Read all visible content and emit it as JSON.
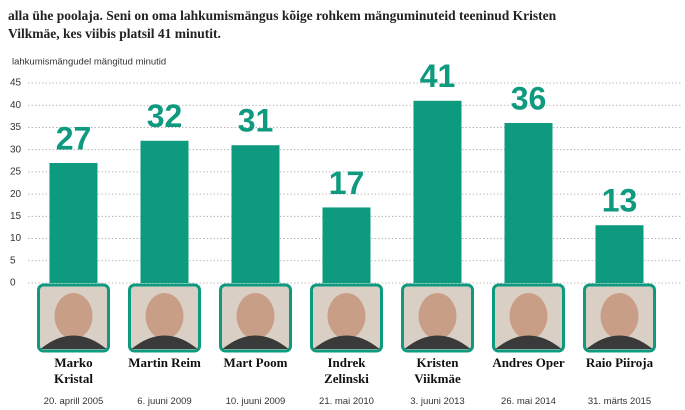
{
  "intro": [
    "alla ühe poolaja. Seni on oma lahkumismängus kõige rohkem mänguminuteid teeninud  Kristen",
    "Vilkmäe, kes viibis platsil 41 minutit."
  ],
  "chart_data": {
    "type": "bar",
    "ylabel": "lahkumismängudel mängitud minutid",
    "categories": [
      "Marko Kristal",
      "Martin Reim",
      "Mart Poom",
      "Indrek Zelinski",
      "Kristen Viikmäe",
      "Andres Oper",
      "Raio Piiroja"
    ],
    "dates": [
      "20. aprill 2005",
      "6. juuni 2009",
      "10. juuni 2009",
      "21. mai 2010",
      "3. juuni 2013",
      "26. mai 2014",
      "31. märts 2015"
    ],
    "values": [
      27,
      32,
      31,
      17,
      41,
      36,
      13
    ],
    "color": "#0e9a7f",
    "ylim": [
      0,
      45
    ],
    "yticks": [
      0,
      5,
      10,
      15,
      20,
      25,
      30,
      35,
      40,
      45
    ],
    "grid": true
  }
}
